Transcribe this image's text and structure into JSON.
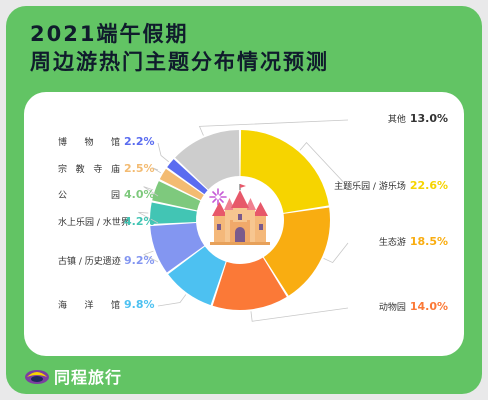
{
  "title_line1": "2021端午假期",
  "title_line2": "周边游热门主题分布情况预测",
  "brand": {
    "name": "同程旅行",
    "logo_icon": "tongcheng-logo-icon"
  },
  "colors": {
    "frame": "#62c464",
    "title": "#101c2c"
  },
  "chart_data": {
    "type": "pie",
    "variant": "donut",
    "title": "2021端午假期周边游热门主题分布情况预测",
    "unit": "%",
    "slices": [
      {
        "label": "主题乐园 / 游乐场",
        "value": 22.6,
        "display": "22.6%",
        "color": "#f6d400"
      },
      {
        "label": "生态游",
        "value": 18.5,
        "display": "18.5%",
        "color": "#f9ad11"
      },
      {
        "label": "动物园",
        "value": 14.0,
        "display": "14.0%",
        "color": "#fb7937"
      },
      {
        "label": "海洋馆",
        "value": 9.8,
        "display": "9.8%",
        "color": "#4dc1f1"
      },
      {
        "label": "古镇 / 历史遗迹",
        "value": 9.2,
        "display": "9.2%",
        "color": "#8396f1"
      },
      {
        "label": "水上乐园 / 水世界",
        "value": 4.2,
        "display": "4.2%",
        "color": "#42c5b4"
      },
      {
        "label": "公园",
        "value": 4.0,
        "display": "4.0%",
        "color": "#7ec97d"
      },
      {
        "label": "宗教寺庙",
        "value": 2.5,
        "display": "2.5%",
        "color": "#f3bb72"
      },
      {
        "label": "博物馆",
        "value": 2.2,
        "display": "2.2%",
        "color": "#5a6cf0"
      },
      {
        "label": "其他",
        "value": 13.0,
        "display": "13.0%",
        "color": "#cdcdcd"
      }
    ],
    "center_icon": "castle-icon"
  }
}
